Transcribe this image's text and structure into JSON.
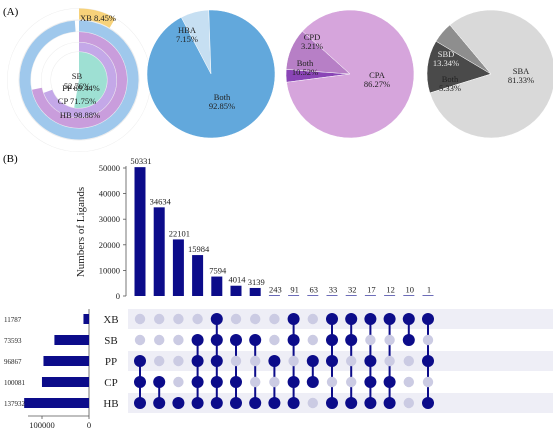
{
  "panels": {
    "a": "(A)",
    "b": "(B)"
  },
  "colors": {
    "navy": "#0c0c8a",
    "dot_off": "#cbcbe3",
    "row_band": "#eeeef6",
    "xb": "#f7d27a",
    "sb": "#9ee0d3",
    "pp": "#c4a8e8",
    "cp": "#c99ddc",
    "hb": "#9fc8ec",
    "hba_blue": "#62a8dc",
    "hba_light": "#c6dff2",
    "cpa": "#d6a5dc",
    "cpd": "#8a45b6",
    "both_purple": "#b77fc6",
    "sba": "#d9d9d9",
    "sbd": "#4a4a4a",
    "both_gray": "#8e8e8e",
    "ring_bg": "#ededed"
  },
  "chart_data": [
    {
      "type": "pie",
      "style": "concentric-rings",
      "rings": [
        {
          "label": "XB",
          "value": 8.45,
          "display": "XB 8.45%"
        },
        {
          "label": "SB",
          "value": 52.76,
          "display": "SB 52.76%"
        },
        {
          "label": "PP",
          "value": 69.44,
          "display": "PP 69.44%"
        },
        {
          "label": "CP",
          "value": 71.75,
          "display": "CP 71.75%"
        },
        {
          "label": "HB",
          "value": 98.88,
          "display": "HB 98.88%"
        }
      ]
    },
    {
      "type": "pie",
      "slices": [
        {
          "label": "HBA",
          "value": 7.15,
          "display": "7.15%"
        },
        {
          "label": "Both",
          "value": 92.85,
          "display": "92.85%"
        }
      ]
    },
    {
      "type": "pie",
      "slices": [
        {
          "label": "CPD",
          "value": 3.21,
          "display": "3.21%"
        },
        {
          "label": "Both",
          "value": 10.52,
          "display": "10.52%"
        },
        {
          "label": "CPA",
          "value": 86.27,
          "display": "86.27%"
        }
      ]
    },
    {
      "type": "pie",
      "slices": [
        {
          "label": "SBD",
          "value": 13.34,
          "display": "13.34%"
        },
        {
          "label": "Both",
          "value": 5.33,
          "display": "5.33%"
        },
        {
          "label": "SBA",
          "value": 81.33,
          "display": "81.33%"
        }
      ]
    },
    {
      "type": "bar",
      "style": "upset-intersections",
      "ylabel": "Numbers of Ligands",
      "ylim": [
        0,
        50000
      ],
      "yticks": [
        0,
        10000,
        20000,
        30000,
        40000,
        50000
      ],
      "values": [
        50331,
        34634,
        22101,
        15984,
        7594,
        4014,
        3139,
        243,
        91,
        63,
        33,
        32,
        17,
        12,
        10,
        1
      ],
      "sets": [
        "XB",
        "SB",
        "PP",
        "CP",
        "HB"
      ],
      "memberships": [
        [
          0,
          0,
          1,
          1,
          1
        ],
        [
          0,
          0,
          0,
          1,
          1
        ],
        [
          0,
          0,
          0,
          0,
          1
        ],
        [
          0,
          1,
          1,
          1,
          1
        ],
        [
          1,
          1,
          1,
          1,
          1
        ],
        [
          0,
          1,
          0,
          1,
          1
        ],
        [
          0,
          1,
          0,
          0,
          1
        ],
        [
          0,
          0,
          1,
          0,
          1
        ],
        [
          1,
          1,
          0,
          1,
          1
        ],
        [
          0,
          0,
          1,
          1,
          0
        ],
        [
          1,
          1,
          1,
          0,
          1
        ],
        [
          1,
          1,
          0,
          0,
          1
        ],
        [
          1,
          0,
          1,
          1,
          1
        ],
        [
          1,
          0,
          0,
          1,
          1
        ],
        [
          1,
          1,
          0,
          0,
          0
        ],
        [
          1,
          0,
          1,
          0,
          1
        ]
      ]
    },
    {
      "type": "bar",
      "style": "set-sizes-horizontal",
      "categories": [
        "XB",
        "SB",
        "PP",
        "CP",
        "HB"
      ],
      "values": [
        11787,
        73593,
        96867,
        100081,
        137932
      ],
      "xticks": [
        100000,
        0
      ]
    }
  ]
}
